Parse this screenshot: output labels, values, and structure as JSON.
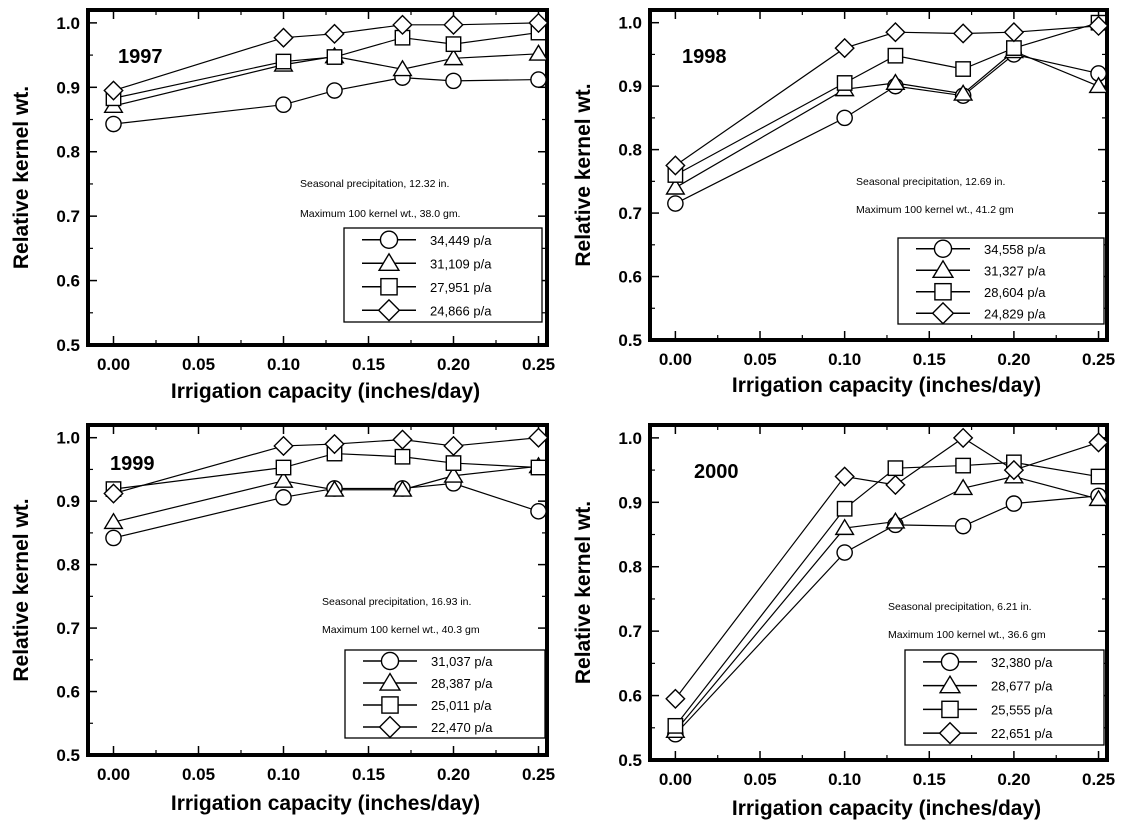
{
  "chart_data": [
    {
      "type": "line",
      "year_label": "1997",
      "xlabel": "Irrigation capacity (inches/day)",
      "ylabel": "Relative kernel wt.",
      "xlim": [
        -0.015,
        0.255
      ],
      "ylim": [
        0.5,
        1.02
      ],
      "x_ticks": [
        "0.00",
        "0.05",
        "0.10",
        "0.15",
        "0.20",
        "0.25"
      ],
      "y_ticks": [
        "0.5",
        "0.6",
        "0.7",
        "0.8",
        "0.9",
        "1.0"
      ],
      "notes": [
        "Seasonal precipitation, 12.32 in.",
        "Maximum 100 kernel wt., 38.0 gm."
      ],
      "x": [
        0.0,
        0.1,
        0.13,
        0.17,
        0.2,
        0.25
      ],
      "series": [
        {
          "name": "34,449 p/a",
          "marker": "circle",
          "values": [
            0.843,
            0.873,
            0.895,
            0.915,
            0.91,
            0.912
          ]
        },
        {
          "name": "31,109 p/a",
          "marker": "triangle",
          "values": [
            0.871,
            0.935,
            0.948,
            0.928,
            0.945,
            0.952
          ]
        },
        {
          "name": "27,951 p/a",
          "marker": "square",
          "values": [
            0.883,
            0.94,
            0.947,
            0.977,
            0.967,
            0.985
          ]
        },
        {
          "name": "24,866 p/a",
          "marker": "diamond",
          "values": [
            0.895,
            0.977,
            0.983,
            0.997,
            0.997,
            1.0
          ]
        }
      ]
    },
    {
      "type": "line",
      "year_label": "1998",
      "xlabel": "Irrigation capacity (inches/day)",
      "ylabel": "Relative kernel wt.",
      "xlim": [
        -0.015,
        0.255
      ],
      "ylim": [
        0.5,
        1.02
      ],
      "x_ticks": [
        "0.00",
        "0.05",
        "0.10",
        "0.15",
        "0.20",
        "0.25"
      ],
      "y_ticks": [
        "0.5",
        "0.6",
        "0.7",
        "0.8",
        "0.9",
        "1.0"
      ],
      "notes": [
        "Seasonal precipitation, 12.69 in.",
        "Maximum 100 kernel wt., 41.2 gm"
      ],
      "x": [
        0.0,
        0.1,
        0.13,
        0.17,
        0.2,
        0.25
      ],
      "series": [
        {
          "name": "34,558 p/a",
          "marker": "circle",
          "values": [
            0.715,
            0.85,
            0.9,
            0.885,
            0.95,
            0.92
          ]
        },
        {
          "name": "31,327 p/a",
          "marker": "triangle",
          "values": [
            0.74,
            0.895,
            0.905,
            0.888,
            0.955,
            0.9
          ]
        },
        {
          "name": "28,604 p/a",
          "marker": "square",
          "values": [
            0.76,
            0.905,
            0.948,
            0.927,
            0.96,
            1.0
          ]
        },
        {
          "name": "24,829 p/a",
          "marker": "diamond",
          "values": [
            0.775,
            0.96,
            0.985,
            0.983,
            0.985,
            0.995
          ]
        }
      ]
    },
    {
      "type": "line",
      "year_label": "1999",
      "xlabel": "Irrigation capacity (inches/day)",
      "ylabel": "Relative kernel wt.",
      "xlim": [
        -0.015,
        0.255
      ],
      "ylim": [
        0.5,
        1.02
      ],
      "x_ticks": [
        "0.00",
        "0.05",
        "0.10",
        "0.15",
        "0.20",
        "0.25"
      ],
      "y_ticks": [
        "0.5",
        "0.6",
        "0.7",
        "0.8",
        "0.9",
        "1.0"
      ],
      "notes": [
        "Seasonal precipitation, 16.93 in.",
        "Maximum 100 kernel wt., 40.3 gm"
      ],
      "x": [
        0.0,
        0.1,
        0.13,
        0.17,
        0.2,
        0.25
      ],
      "series": [
        {
          "name": "31,037 p/a",
          "marker": "circle",
          "values": [
            0.842,
            0.906,
            0.92,
            0.92,
            0.928,
            0.884
          ]
        },
        {
          "name": "28,387 p/a",
          "marker": "triangle",
          "values": [
            0.867,
            0.932,
            0.918,
            0.918,
            0.94,
            0.955
          ]
        },
        {
          "name": "25,011 p/a",
          "marker": "square",
          "values": [
            0.919,
            0.953,
            0.975,
            0.97,
            0.96,
            0.953
          ]
        },
        {
          "name": "22,470 p/a",
          "marker": "diamond",
          "values": [
            0.912,
            0.987,
            0.99,
            0.997,
            0.987,
            1.0
          ]
        }
      ]
    },
    {
      "type": "line",
      "year_label": "2000",
      "xlabel": "Irrigation capacity (inches/day)",
      "ylabel": "Relative kernel wt.",
      "xlim": [
        -0.015,
        0.255
      ],
      "ylim": [
        0.5,
        1.02
      ],
      "x_ticks": [
        "0.00",
        "0.05",
        "0.10",
        "0.15",
        "0.20",
        "0.25"
      ],
      "y_ticks": [
        "0.5",
        "0.6",
        "0.7",
        "0.8",
        "0.9",
        "1.0"
      ],
      "notes": [
        "Seasonal precipitation, 6.21 in.",
        "Maximum 100 kernel wt., 36.6 gm"
      ],
      "x": [
        0.0,
        0.1,
        0.13,
        0.17,
        0.2,
        0.25
      ],
      "series": [
        {
          "name": "32,380 p/a",
          "marker": "circle",
          "values": [
            0.54,
            0.822,
            0.865,
            0.863,
            0.898,
            0.91
          ]
        },
        {
          "name": "28,677 p/a",
          "marker": "triangle",
          "values": [
            0.545,
            0.86,
            0.87,
            0.922,
            0.94,
            0.905
          ]
        },
        {
          "name": "25,555 p/a",
          "marker": "square",
          "values": [
            0.553,
            0.89,
            0.953,
            0.957,
            0.962,
            0.94
          ]
        },
        {
          "name": "22,651 p/a",
          "marker": "diamond",
          "values": [
            0.595,
            0.94,
            0.927,
            1.0,
            0.95,
            0.993
          ]
        }
      ]
    }
  ]
}
